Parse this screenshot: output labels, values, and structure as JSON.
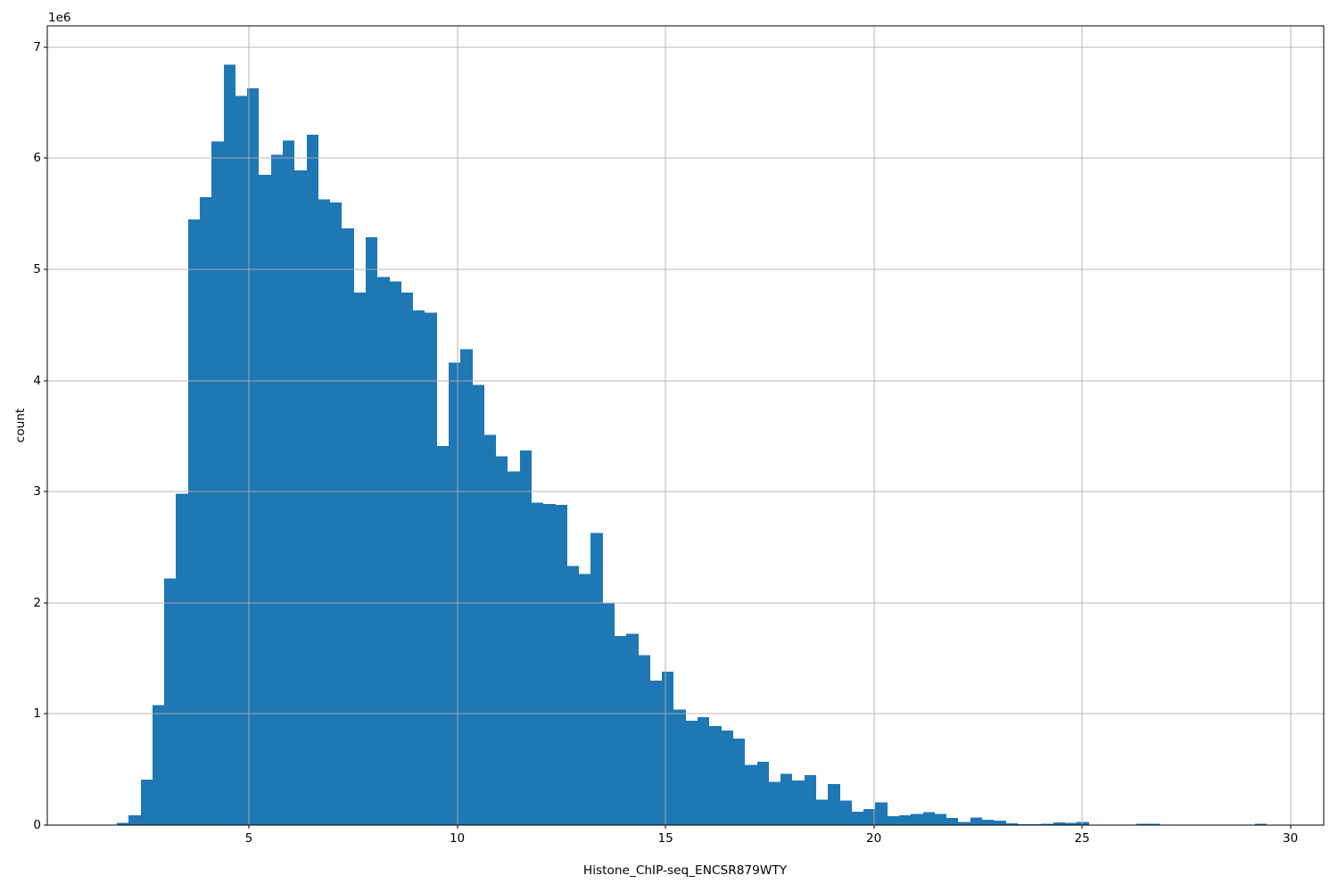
{
  "style": {
    "bar_color": "#1f77b4",
    "grid_color": "#b0b0b0",
    "spine_color": "#000000",
    "text_color": "#000000",
    "background": "#ffffff"
  },
  "chart_data": {
    "type": "bar",
    "subtype": "histogram",
    "title": "",
    "xlabel": "Histone_ChIP-seq_ENCSR879WTY",
    "ylabel": "count",
    "y_offset_label": "1e6",
    "grid": true,
    "legend": false,
    "x_ticks": [
      5,
      10,
      15,
      20,
      25,
      30
    ],
    "y_ticks": [
      0,
      1,
      2,
      3,
      4,
      5,
      6,
      7
    ],
    "y_tick_scale": 1000000,
    "xlim": [
      0.16,
      30.8
    ],
    "ylim": [
      0,
      7190000
    ],
    "bin_start": 1.83,
    "bin_width": 0.2845,
    "counts": [
      20000,
      90000,
      410000,
      1080000,
      2220000,
      2980000,
      5450000,
      5650000,
      6150000,
      6840000,
      6560000,
      6630000,
      5850000,
      6030000,
      6160000,
      5890000,
      6210000,
      5630000,
      5600000,
      5370000,
      4790000,
      5290000,
      4930000,
      4890000,
      4790000,
      4630000,
      4610000,
      3410000,
      4160000,
      4280000,
      3960000,
      3510000,
      3320000,
      3180000,
      3370000,
      2900000,
      2890000,
      2880000,
      2330000,
      2260000,
      2630000,
      2000000,
      1700000,
      1720000,
      1530000,
      1300000,
      1380000,
      1040000,
      940000,
      970000,
      890000,
      850000,
      780000,
      540000,
      570000,
      390000,
      460000,
      400000,
      450000,
      230000,
      370000,
      220000,
      120000,
      145000,
      205000,
      80000,
      90000,
      100000,
      115000,
      100000,
      65000,
      30000,
      70000,
      50000,
      40000,
      18000,
      10000,
      8000,
      13000,
      24000,
      20000,
      30000,
      0,
      0,
      0,
      0,
      13000,
      13000,
      0,
      0,
      0,
      0,
      0,
      0,
      0,
      0,
      12000
    ]
  }
}
